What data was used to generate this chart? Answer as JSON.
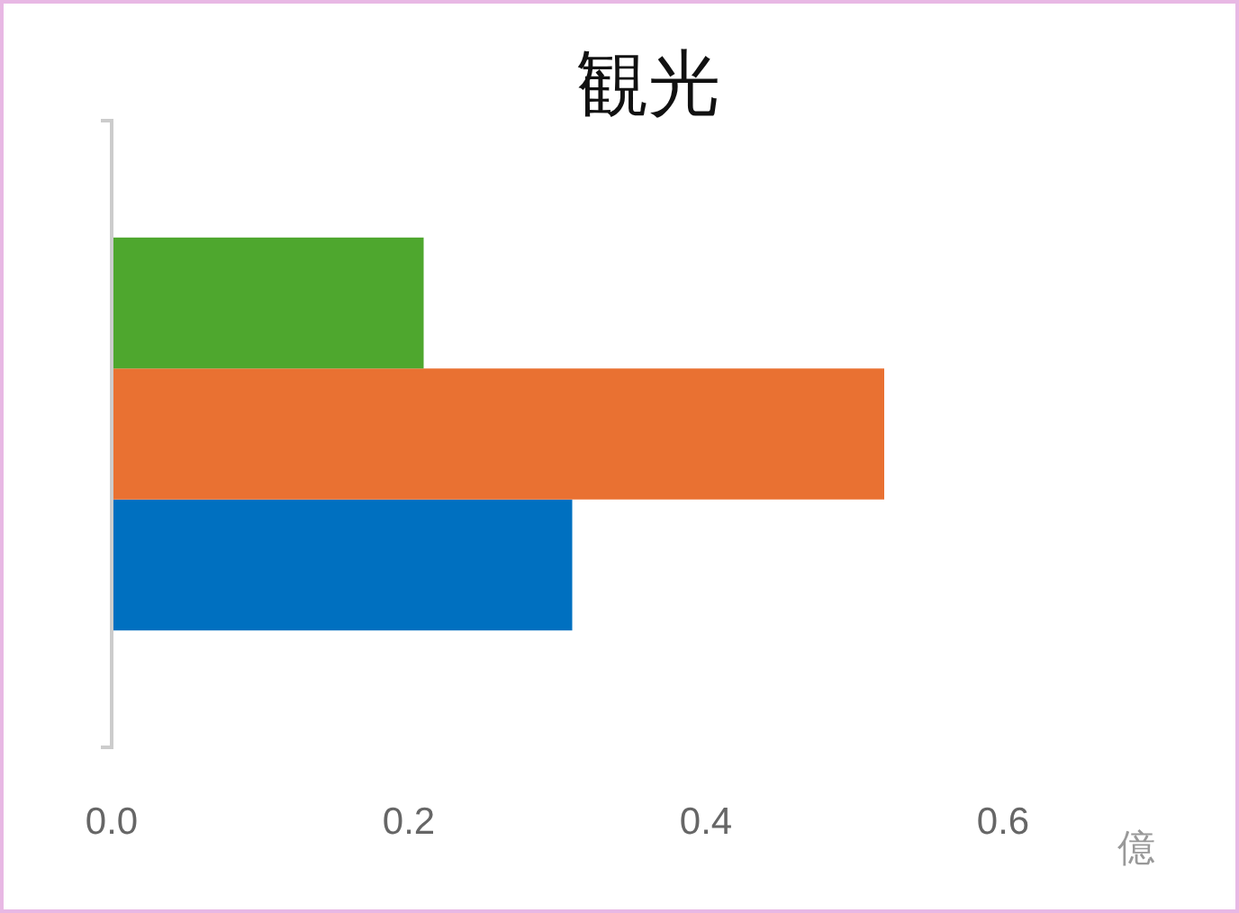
{
  "chart_data": {
    "type": "bar",
    "title": "観光",
    "xlabel": "億",
    "orientation": "horizontal",
    "categories": [
      null
    ],
    "series": [
      {
        "color": "#0070c0",
        "values": [
          0.31
        ]
      },
      {
        "color": "#e97132",
        "values": [
          0.52
        ]
      },
      {
        "color": "#4ea72e",
        "values": [
          0.21
        ]
      }
    ],
    "xlim": [
      0,
      0.6
    ],
    "xticks": [
      {
        "value": 0,
        "label": "0.0"
      },
      {
        "value": 0.2,
        "label": "0.2"
      },
      {
        "value": 0.4,
        "label": "0.4"
      },
      {
        "value": 0.6,
        "label": "0.6"
      }
    ],
    "grid": false
  }
}
